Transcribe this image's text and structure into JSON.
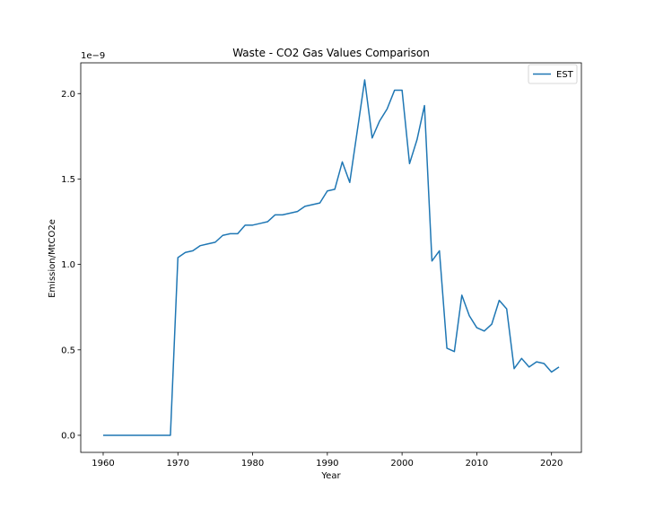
{
  "chart_data": {
    "type": "line",
    "title": "Waste - CO2 Gas Values Comparison",
    "xlabel": "Year",
    "ylabel": "Emission/MtCO2e",
    "y_offset_label": "1e−9",
    "xlim": [
      1957,
      2024
    ],
    "ylim": [
      -0.1,
      2.18
    ],
    "x_ticks": [
      1960,
      1970,
      1980,
      1990,
      2000,
      2010,
      2020
    ],
    "y_ticks": [
      0.0,
      0.5,
      1.0,
      1.5,
      2.0
    ],
    "y_tick_labels": [
      "0.0",
      "0.5",
      "1.0",
      "1.5",
      "2.0"
    ],
    "grid": false,
    "legend_position": "top-right",
    "series": [
      {
        "name": "EST",
        "color": "#1f77b4",
        "x": [
          1960,
          1961,
          1962,
          1963,
          1964,
          1965,
          1966,
          1967,
          1968,
          1969,
          1970,
          1971,
          1972,
          1973,
          1974,
          1975,
          1976,
          1977,
          1978,
          1979,
          1980,
          1981,
          1982,
          1983,
          1984,
          1985,
          1986,
          1987,
          1988,
          1989,
          1990,
          1991,
          1992,
          1993,
          1994,
          1995,
          1996,
          1997,
          1998,
          1999,
          2000,
          2001,
          2002,
          2003,
          2004,
          2005,
          2006,
          2007,
          2008,
          2009,
          2010,
          2011,
          2012,
          2013,
          2014,
          2015,
          2016,
          2017,
          2018,
          2019,
          2020,
          2021
        ],
        "y": [
          0,
          0,
          0,
          0,
          0,
          0,
          0,
          0,
          0,
          0,
          1.04,
          1.07,
          1.08,
          1.11,
          1.12,
          1.13,
          1.17,
          1.18,
          1.18,
          1.23,
          1.23,
          1.24,
          1.25,
          1.29,
          1.29,
          1.3,
          1.31,
          1.34,
          1.35,
          1.36,
          1.43,
          1.44,
          1.6,
          1.48,
          1.78,
          2.08,
          1.74,
          1.84,
          1.91,
          2.02,
          2.02,
          1.59,
          1.73,
          1.93,
          1.02,
          1.08,
          0.51,
          0.49,
          0.82,
          0.7,
          0.63,
          0.61,
          0.65,
          0.79,
          0.74,
          0.39,
          0.45,
          0.4,
          0.43,
          0.42,
          0.37,
          0.4
        ]
      }
    ]
  }
}
